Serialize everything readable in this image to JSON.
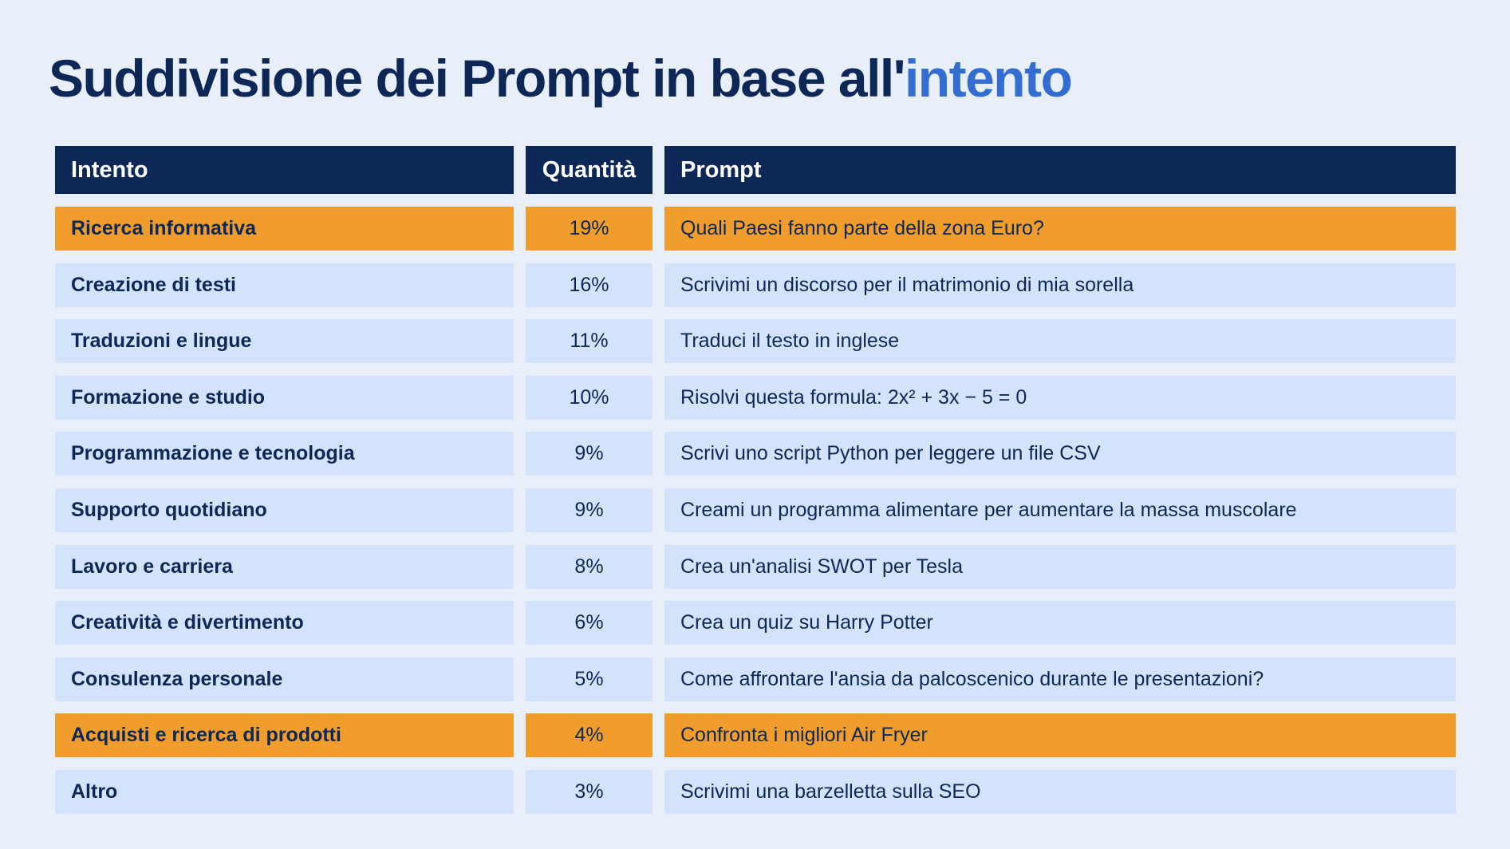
{
  "title": {
    "main": "Suddivisione dei Prompt in base all'",
    "accent": "intento"
  },
  "colors": {
    "background": "#E8EFF9",
    "header": "#0D2856",
    "row": "#D2E3FB",
    "highlight": "#F09D2E",
    "accent": "#346DD0"
  },
  "table": {
    "headers": [
      "Intento",
      "Quantità",
      "Prompt"
    ],
    "rows": [
      {
        "intent": "Ricerca informativa",
        "share": "19%",
        "prompt": "Quali Paesi fanno parte della zona Euro?",
        "highlighted": true
      },
      {
        "intent": "Creazione di testi",
        "share": "16%",
        "prompt": "Scrivimi un discorso per il matrimonio di mia sorella",
        "highlighted": false
      },
      {
        "intent": "Traduzioni e lingue",
        "share": "11%",
        "prompt": "Traduci il testo in inglese",
        "highlighted": false
      },
      {
        "intent": "Formazione e studio",
        "share": "10%",
        "prompt": "Risolvi questa formula: 2x² + 3x − 5 = 0",
        "highlighted": false
      },
      {
        "intent": "Programmazione e tecnologia",
        "share": "9%",
        "prompt": "Scrivi uno script Python per leggere un file CSV",
        "highlighted": false
      },
      {
        "intent": "Supporto quotidiano",
        "share": "9%",
        "prompt": "Creami un programma alimentare per aumentare la massa muscolare",
        "highlighted": false
      },
      {
        "intent": "Lavoro e carriera",
        "share": "8%",
        "prompt": "Crea un'analisi SWOT per Tesla",
        "highlighted": false
      },
      {
        "intent": "Creatività e divertimento",
        "share": "6%",
        "prompt": "Crea un quiz su Harry Potter",
        "highlighted": false
      },
      {
        "intent": "Consulenza personale",
        "share": "5%",
        "prompt": "Come affrontare l'ansia da palcoscenico durante le presentazioni?",
        "highlighted": false
      },
      {
        "intent": "Acquisti e ricerca di prodotti",
        "share": "4%",
        "prompt": "Confronta i migliori Air Fryer",
        "highlighted": true
      },
      {
        "intent": "Altro",
        "share": "3%",
        "prompt": "Scrivimi una barzelletta sulla SEO",
        "highlighted": false
      }
    ]
  }
}
